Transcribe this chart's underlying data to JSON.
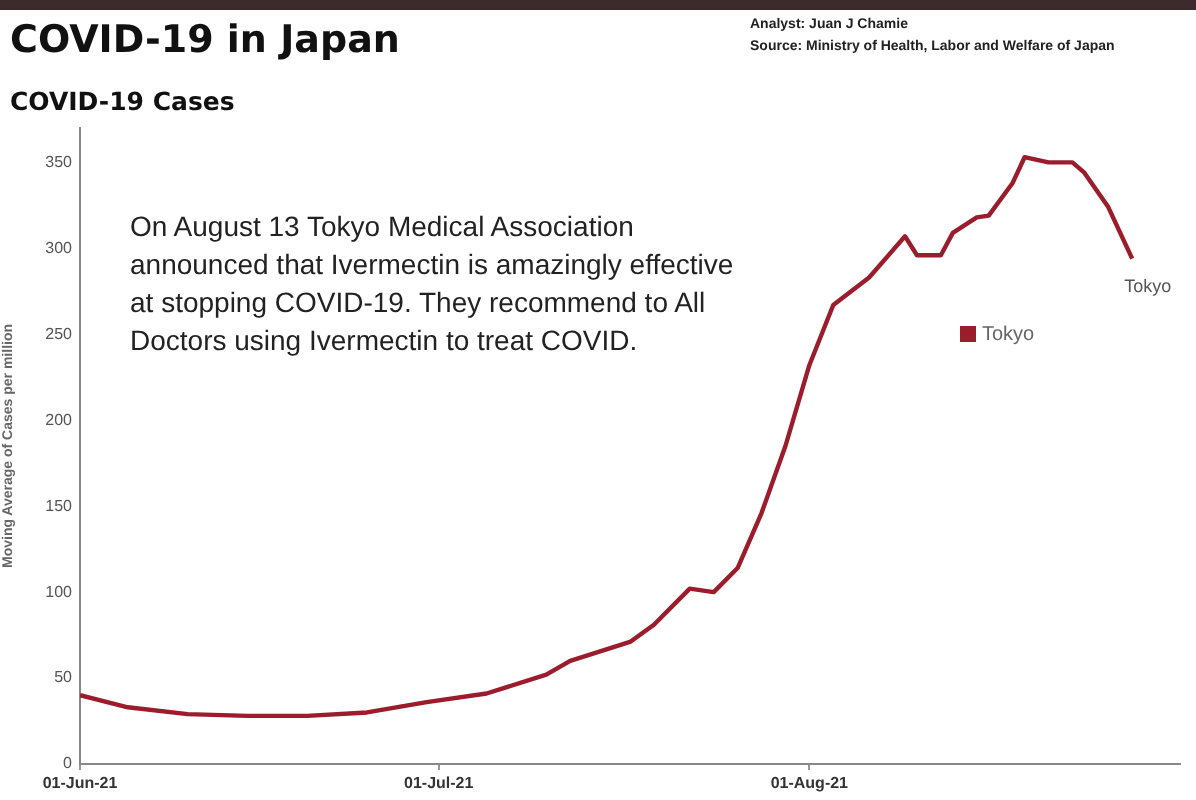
{
  "chart_data": {
    "type": "line",
    "title": "COVID-19 in Japan",
    "subtitle": "COVID-19 Cases",
    "ylabel": "Moving Average of Cases per million",
    "annotations": [
      "Analyst: Juan J Chamie",
      "Source: Ministry of Health, Labor and Welfare of Japan",
      "On August 13 Tokyo Medical Association announced that Ivermectin is amazingly effective at stopping COVID-19. They recommend to All Doctors using Ivermectin to treat COVID."
    ],
    "series": [
      {
        "name": "Tokyo",
        "color": "#9b1c2b",
        "x": [
          "2021-06-01",
          "2021-06-05",
          "2021-06-10",
          "2021-06-15",
          "2021-06-20",
          "2021-06-25",
          "2021-06-30",
          "2021-07-05",
          "2021-07-10",
          "2021-07-12",
          "2021-07-17",
          "2021-07-19",
          "2021-07-22",
          "2021-07-24",
          "2021-07-26",
          "2021-07-28",
          "2021-07-30",
          "2021-08-01",
          "2021-08-03",
          "2021-08-06",
          "2021-08-09",
          "2021-08-10",
          "2021-08-12",
          "2021-08-13",
          "2021-08-15",
          "2021-08-16",
          "2021-08-18",
          "2021-08-19",
          "2021-08-21",
          "2021-08-23",
          "2021-08-24",
          "2021-08-26",
          "2021-08-28"
        ],
        "values": [
          40,
          33,
          29,
          28,
          28,
          30,
          36,
          41,
          52,
          60,
          71,
          81,
          102,
          100,
          114,
          146,
          185,
          232,
          267,
          283,
          307,
          296,
          296,
          309,
          318,
          319,
          338,
          353,
          350,
          350,
          344,
          324,
          294
        ]
      }
    ],
    "xlim": [
      "2021-06-01",
      "2021-09-01"
    ],
    "xticks": [
      {
        "value": "2021-06-01",
        "label": "01-Jun-21"
      },
      {
        "value": "2021-07-01",
        "label": "01-Jul-21"
      },
      {
        "value": "2021-08-01",
        "label": "01-Aug-21"
      }
    ],
    "ylim": [
      0,
      370
    ],
    "yticks": [
      0,
      50,
      100,
      150,
      200,
      250,
      300,
      350
    ],
    "grid": false,
    "legend": "right",
    "marker": "none",
    "line_style": "solid"
  }
}
